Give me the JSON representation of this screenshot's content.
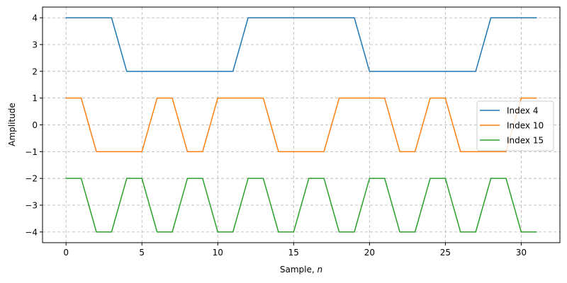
{
  "chart_data": {
    "type": "line",
    "title": "",
    "xlabel": "Sample, n",
    "xlabel_prefix": "Sample, ",
    "xlabel_var": "n",
    "ylabel": "Amplitude",
    "xlim": [
      -1.55,
      32.55
    ],
    "ylim": [
      -4.4,
      4.4
    ],
    "xticks": [
      0,
      5,
      10,
      15,
      20,
      25,
      30
    ],
    "yticks": [
      4,
      3,
      2,
      1,
      0,
      -1,
      -2,
      -3,
      -4
    ],
    "ytick_labels": [
      "4",
      "3",
      "2",
      "1",
      "0",
      "−1",
      "−2",
      "−3",
      "−4"
    ],
    "grid": true,
    "grid_style": "dashed",
    "legend_position": "center right",
    "x": [
      0,
      1,
      2,
      3,
      4,
      5,
      6,
      7,
      8,
      9,
      10,
      11,
      12,
      13,
      14,
      15,
      16,
      17,
      18,
      19,
      20,
      21,
      22,
      23,
      24,
      25,
      26,
      27,
      28,
      29,
      30,
      31
    ],
    "series": [
      {
        "name": "Index 4",
        "color": "#1f77b4",
        "values": [
          4,
          4,
          4,
          4,
          2,
          2,
          2,
          2,
          2,
          2,
          2,
          2,
          4,
          4,
          4,
          4,
          4,
          4,
          4,
          4,
          2,
          2,
          2,
          2,
          2,
          2,
          2,
          2,
          4,
          4,
          4,
          4
        ]
      },
      {
        "name": "Index 10",
        "color": "#ff7f0e",
        "values": [
          1,
          1,
          -1,
          -1,
          -1,
          -1,
          1,
          1,
          -1,
          -1,
          1,
          1,
          1,
          1,
          -1,
          -1,
          -1,
          -1,
          1,
          1,
          1,
          1,
          -1,
          -1,
          1,
          1,
          -1,
          -1,
          -1,
          -1,
          1,
          1
        ]
      },
      {
        "name": "Index 15",
        "color": "#2ca02c",
        "values": [
          -2,
          -2,
          -4,
          -4,
          -2,
          -2,
          -4,
          -4,
          -2,
          -2,
          -4,
          -4,
          -2,
          -2,
          -4,
          -4,
          -2,
          -2,
          -4,
          -4,
          -2,
          -2,
          -4,
          -4,
          -2,
          -2,
          -4,
          -4,
          -2,
          -2,
          -4,
          -4
        ]
      }
    ]
  },
  "colors": {
    "grid": "#b0b0b0",
    "axis": "#000000",
    "legend_border": "#cccccc"
  }
}
